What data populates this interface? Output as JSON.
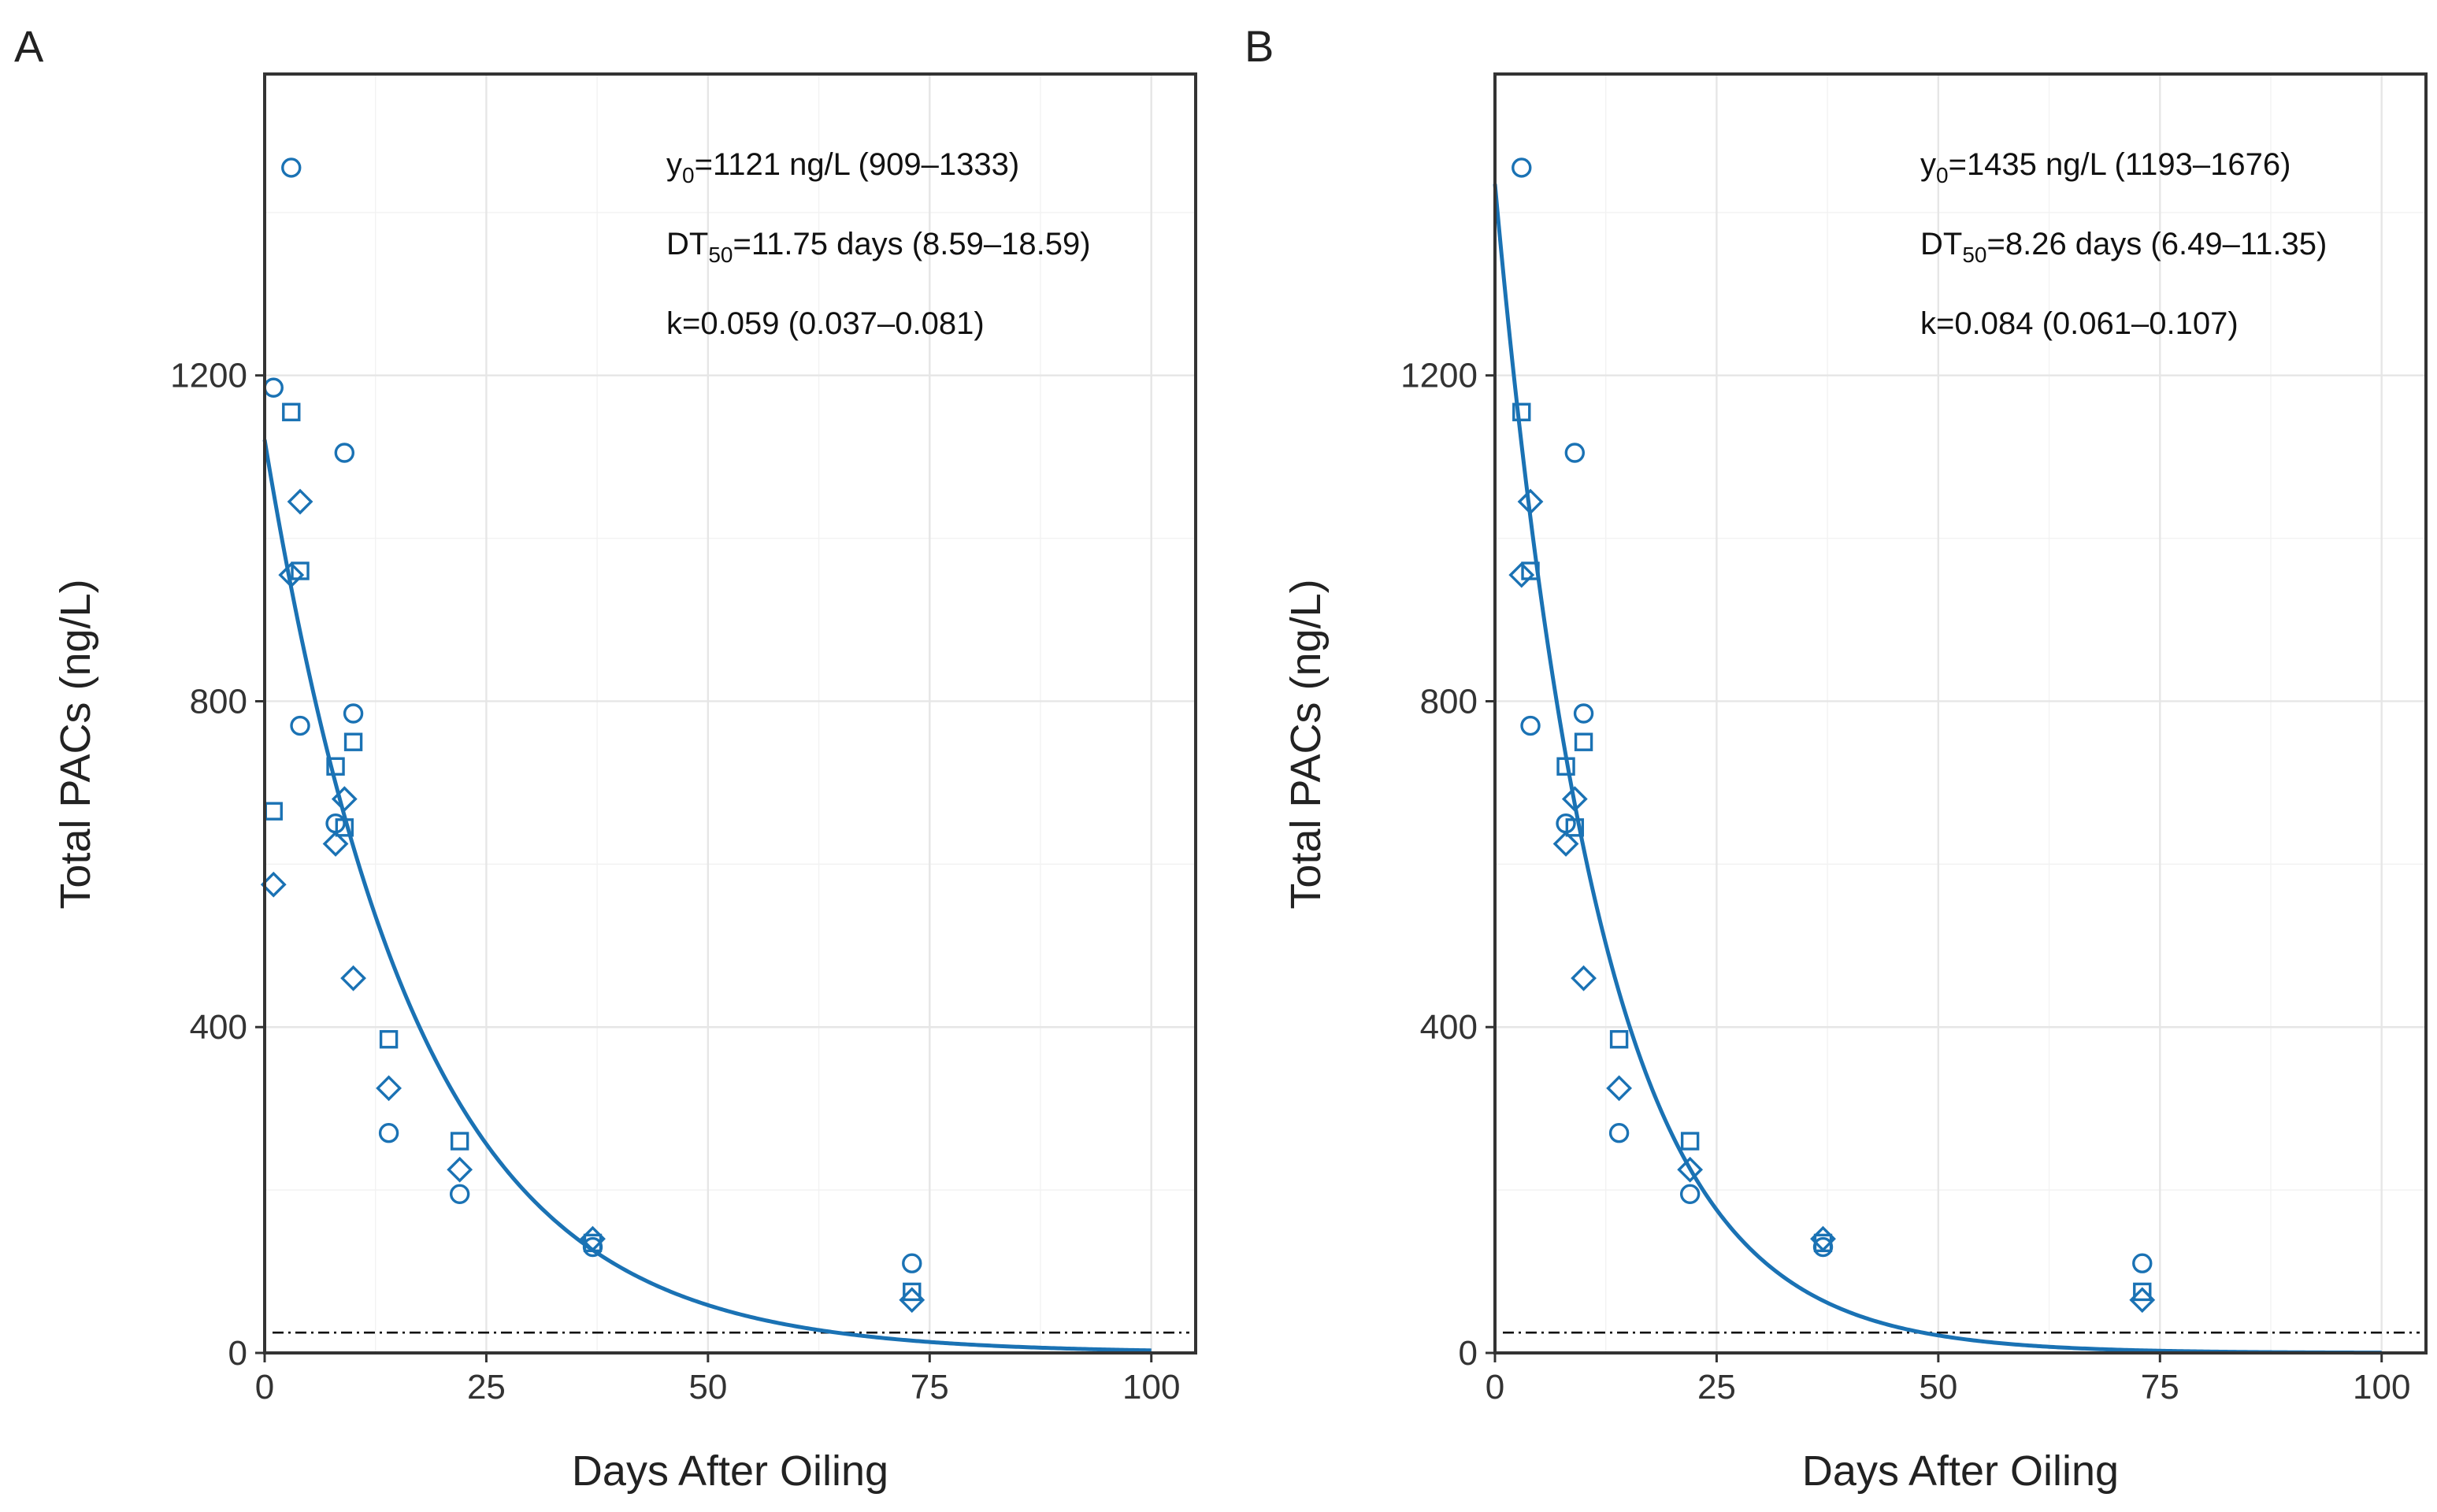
{
  "colors": {
    "series": "#1a72b4",
    "reference_line": "#111111",
    "grid": "#e6e6e6",
    "frame": "#333333"
  },
  "chart_data": [
    {
      "type": "scatter",
      "panel_label": "A",
      "xlabel": "Days After Oiling",
      "ylabel": "Total PACs (ng/L)",
      "xlim": [
        0,
        105
      ],
      "ylim": [
        0,
        1570
      ],
      "x_ticks": [
        0,
        25,
        50,
        75,
        100
      ],
      "y_ticks": [
        0,
        400,
        800,
        1200
      ],
      "grid": true,
      "reference_line_y": 25,
      "fit": {
        "model": "exponential decay",
        "y0": 1121,
        "k": 0.059,
        "x_range": [
          0,
          100
        ]
      },
      "annotations": [
        {
          "main": "y",
          "sub": "0",
          "rest": "=1121 ng/L (909–1333)"
        },
        {
          "main": "DT",
          "sub": "50",
          "rest": "=11.75 days (8.59–18.59)"
        },
        {
          "main": "k=0.059 (0.037–0.081)",
          "sub": "",
          "rest": ""
        }
      ],
      "series": [
        {
          "name": "circle",
          "marker": "circle",
          "points": [
            [
              1,
              1185
            ],
            [
              3,
              1455
            ],
            [
              4,
              770
            ],
            [
              8,
              650
            ],
            [
              9,
              1105
            ],
            [
              10,
              785
            ],
            [
              14,
              270
            ],
            [
              22,
              195
            ],
            [
              37,
              130
            ],
            [
              73,
              110
            ]
          ]
        },
        {
          "name": "square",
          "marker": "square",
          "points": [
            [
              1,
              665
            ],
            [
              3,
              1155
            ],
            [
              4,
              960
            ],
            [
              8,
              720
            ],
            [
              9,
              645
            ],
            [
              10,
              750
            ],
            [
              14,
              385
            ],
            [
              22,
              260
            ],
            [
              37,
              135
            ],
            [
              73,
              75
            ]
          ]
        },
        {
          "name": "diamond",
          "marker": "diamond",
          "points": [
            [
              1,
              575
            ],
            [
              3,
              955
            ],
            [
              4,
              1045
            ],
            [
              8,
              625
            ],
            [
              9,
              680
            ],
            [
              10,
              460
            ],
            [
              14,
              325
            ],
            [
              22,
              225
            ],
            [
              37,
              140
            ],
            [
              73,
              65
            ]
          ]
        }
      ]
    },
    {
      "type": "scatter",
      "panel_label": "B",
      "xlabel": "Days After Oiling",
      "ylabel": "Total PACs (ng/L)",
      "xlim": [
        0,
        105
      ],
      "ylim": [
        0,
        1570
      ],
      "x_ticks": [
        0,
        25,
        50,
        75,
        100
      ],
      "y_ticks": [
        0,
        400,
        800,
        1200
      ],
      "grid": true,
      "reference_line_y": 25,
      "fit": {
        "model": "exponential decay",
        "y0": 1435,
        "k": 0.084,
        "x_range": [
          0,
          100
        ]
      },
      "annotations": [
        {
          "main": "y",
          "sub": "0",
          "rest": "=1435 ng/L (1193–1676)"
        },
        {
          "main": "DT",
          "sub": "50",
          "rest": "=8.26 days (6.49–11.35)"
        },
        {
          "main": "k=0.084 (0.061–0.107)",
          "sub": "",
          "rest": ""
        }
      ],
      "series": [
        {
          "name": "circle",
          "marker": "circle",
          "points": [
            [
              3,
              1455
            ],
            [
              4,
              770
            ],
            [
              8,
              650
            ],
            [
              9,
              1105
            ],
            [
              10,
              785
            ],
            [
              14,
              270
            ],
            [
              22,
              195
            ],
            [
              37,
              130
            ],
            [
              73,
              110
            ]
          ]
        },
        {
          "name": "square",
          "marker": "square",
          "points": [
            [
              3,
              1155
            ],
            [
              4,
              960
            ],
            [
              8,
              720
            ],
            [
              9,
              645
            ],
            [
              10,
              750
            ],
            [
              14,
              385
            ],
            [
              22,
              260
            ],
            [
              37,
              135
            ],
            [
              73,
              75
            ]
          ]
        },
        {
          "name": "diamond",
          "marker": "diamond",
          "points": [
            [
              3,
              955
            ],
            [
              4,
              1045
            ],
            [
              8,
              625
            ],
            [
              9,
              680
            ],
            [
              10,
              460
            ],
            [
              14,
              325
            ],
            [
              22,
              225
            ],
            [
              37,
              140
            ],
            [
              73,
              65
            ]
          ]
        }
      ]
    }
  ]
}
